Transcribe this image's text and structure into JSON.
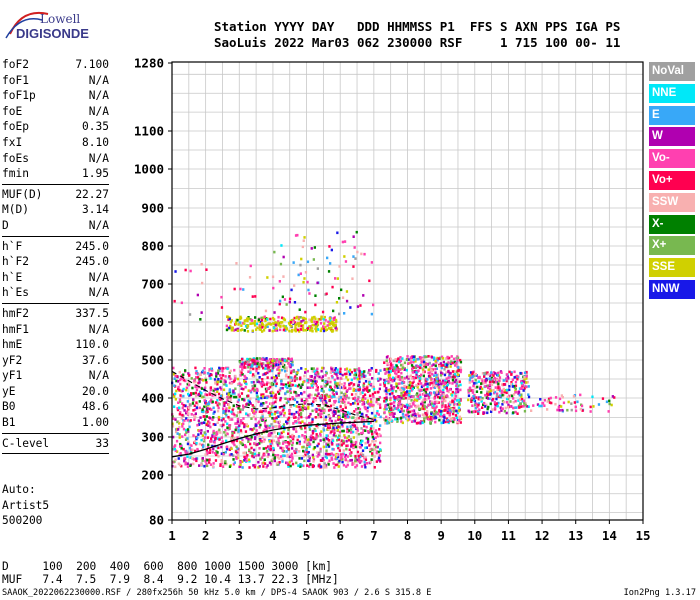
{
  "logo": {
    "line1": "Lowell",
    "line2": "DIGISONDE"
  },
  "header": {
    "line1": "Station YYYY DAY   DDD HHMMSS P1  FFS S AXN PPS IGA PS",
    "line2": "SaoLuis 2022 Mar03 062 230000 RSF     1 715 100 00- 11"
  },
  "params": [
    {
      "label": "foF2",
      "value": "7.100"
    },
    {
      "label": "foF1",
      "value": "N/A"
    },
    {
      "label": "foF1p",
      "value": "N/A"
    },
    {
      "label": "foE",
      "value": "N/A"
    },
    {
      "label": "foEp",
      "value": "0.35"
    },
    {
      "label": "fxI",
      "value": "8.10"
    },
    {
      "label": "foEs",
      "value": "N/A"
    },
    {
      "label": "fmin",
      "value": "1.95"
    },
    {
      "sep": true
    },
    {
      "label": "MUF(D)",
      "value": "22.27"
    },
    {
      "label": "M(D)",
      "value": "3.14"
    },
    {
      "label": "D",
      "value": "N/A"
    },
    {
      "sep": true
    },
    {
      "label": "h`F",
      "value": "245.0"
    },
    {
      "label": "h`F2",
      "value": "245.0"
    },
    {
      "label": "h`E",
      "value": "N/A"
    },
    {
      "label": "h`Es",
      "value": "N/A"
    },
    {
      "sep": true
    },
    {
      "label": "hmF2",
      "value": "337.5"
    },
    {
      "label": "hmF1",
      "value": "N/A"
    },
    {
      "label": "hmE",
      "value": "110.0"
    },
    {
      "label": "yF2",
      "value": "37.6"
    },
    {
      "label": "yF1",
      "value": "N/A"
    },
    {
      "label": "yE",
      "value": "20.0"
    },
    {
      "label": "B0",
      "value": "48.6"
    },
    {
      "label": "B1",
      "value": "1.00"
    },
    {
      "sep": true
    },
    {
      "label": "C-level",
      "value": "33"
    },
    {
      "sep": true
    }
  ],
  "notes": {
    "line1": "Auto:",
    "line2": "Artist5",
    "line3": "500200"
  },
  "muf_table": {
    "line1": "D     100  200  400  600  800 1000 1500 3000 [km]",
    "line2": "MUF   7.4  7.5  7.9  8.4  9.2 10.4 13.7 22.3 [MHz]"
  },
  "footer": {
    "left": "SAAOK_2022062230000.RSF / 280fx256h 50 kHz 5.0 km / DPS-4 SAAOK 903 / 2.6 S 315.8 E",
    "right": "Ion2Png 1.3.17"
  },
  "legend": [
    {
      "label": "NoVal",
      "color": "#a0a0a0"
    },
    {
      "label": "NNE",
      "color": "#00e8f8"
    },
    {
      "label": "E",
      "color": "#38a8f8"
    },
    {
      "label": "W",
      "color": "#b000b0"
    },
    {
      "label": "Vo-",
      "color": "#ff40b0"
    },
    {
      "label": "Vo+",
      "color": "#ff0050"
    },
    {
      "label": "SSW",
      "color": "#f8b0b0"
    },
    {
      "label": "X-",
      "color": "#008000"
    },
    {
      "label": "X+",
      "color": "#78b850"
    },
    {
      "label": "SSE",
      "color": "#d0d000"
    },
    {
      "label": "NNW",
      "color": "#1818e8"
    }
  ],
  "chart_data": {
    "type": "scatter",
    "xlim": [
      1,
      15
    ],
    "ylim": [
      80,
      1280
    ],
    "x_ticks": [
      "1",
      "2",
      "3",
      "4",
      "5",
      "6",
      "7",
      "8",
      "9",
      "10",
      "11",
      "12",
      "13",
      "14",
      "15"
    ],
    "y_ticks": [
      "80",
      "200",
      "300",
      "400",
      "500",
      "600",
      "700",
      "800",
      "900",
      "1000",
      "1100",
      "1280"
    ],
    "grid": true,
    "xlabel": "",
    "ylabel": "",
    "scale": "ionogram",
    "trace_solid": [
      [
        1.0,
        248
      ],
      [
        1.5,
        255
      ],
      [
        2.0,
        268
      ],
      [
        2.5,
        282
      ],
      [
        3.0,
        296
      ],
      [
        3.5,
        308
      ],
      [
        4.0,
        318
      ],
      [
        4.5,
        325
      ],
      [
        5.0,
        330
      ],
      [
        5.5,
        333
      ],
      [
        6.0,
        336
      ],
      [
        6.5,
        338
      ],
      [
        7.0,
        340
      ]
    ],
    "trace_dashed": [
      [
        1.0,
        470
      ],
      [
        1.5,
        445
      ],
      [
        2.0,
        420
      ],
      [
        2.5,
        398
      ],
      [
        3.0,
        380
      ],
      [
        3.5,
        372
      ],
      [
        4.0,
        375
      ],
      [
        4.5,
        382
      ],
      [
        5.0,
        385
      ],
      [
        5.5,
        382
      ],
      [
        6.0,
        370
      ],
      [
        6.5,
        355
      ],
      [
        7.0,
        345
      ]
    ],
    "echo_regions": [
      {
        "x": [
          1.0,
          7.2
        ],
        "y": [
          220,
          480
        ],
        "n": 2200
      },
      {
        "x": [
          2.6,
          5.9
        ],
        "y": [
          575,
          615
        ],
        "n": 300
      },
      {
        "x": [
          3.0,
          4.6
        ],
        "y": [
          480,
          505
        ],
        "n": 150
      },
      {
        "x": [
          7.3,
          9.6
        ],
        "y": [
          335,
          510
        ],
        "n": 900
      },
      {
        "x": [
          9.8,
          11.6
        ],
        "y": [
          360,
          470
        ],
        "n": 350
      },
      {
        "x": [
          11.6,
          14.2
        ],
        "y": [
          365,
          410
        ],
        "n": 60
      },
      {
        "x": [
          4.0,
          7.0
        ],
        "y": [
          620,
          840
        ],
        "n": 90
      },
      {
        "x": [
          1.0,
          4.0
        ],
        "y": [
          600,
          760
        ],
        "n": 25
      }
    ]
  }
}
